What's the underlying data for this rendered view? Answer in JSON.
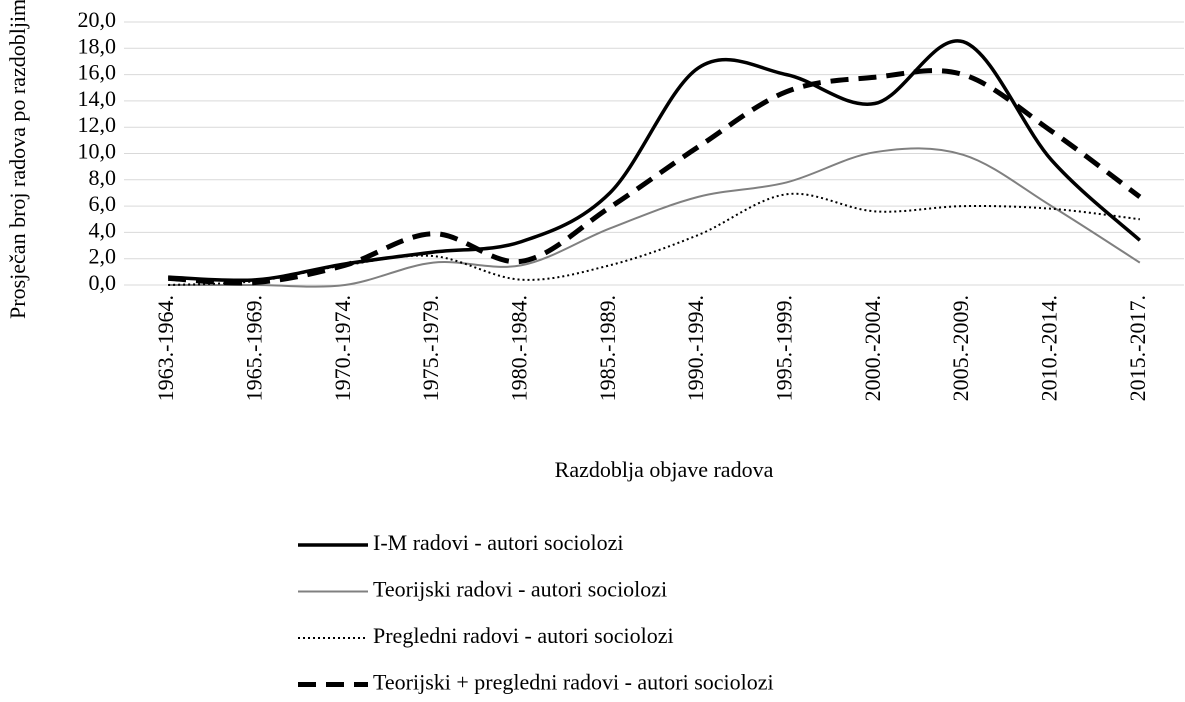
{
  "chart_data": {
    "type": "line",
    "xlabel": "Razdoblja objave radova",
    "ylabel": "Prosječan broj radova po razdobljima",
    "categories": [
      "1963.-1964.",
      "1965.-1969.",
      "1970.-1974.",
      "1975.-1979.",
      "1980.-1984.",
      "1985.-1989.",
      "1990.-1994.",
      "1995.-1999.",
      "2000.-2004.",
      "2005.-2009.",
      "2010.-2014.",
      "2015.-2017."
    ],
    "series": [
      {
        "name": "I-M radovi - autori sociolozi",
        "color": "#000000",
        "values": [
          0.6,
          0.4,
          1.6,
          2.5,
          3.3,
          7.0,
          16.5,
          16.0,
          13.8,
          18.5,
          9.5,
          3.4
        ]
      },
      {
        "name": "Teorijski radovi - autori sociolozi",
        "color": "#808080",
        "values": [
          0.0,
          0.0,
          0.0,
          1.7,
          1.5,
          4.3,
          6.7,
          7.8,
          10.1,
          9.9,
          6.0,
          1.7
        ]
      },
      {
        "name": "Pregledni radovi - autori sociolozi",
        "color": "#000000",
        "values": [
          0.0,
          0.3,
          1.5,
          2.2,
          0.4,
          1.5,
          3.8,
          6.9,
          5.6,
          6.0,
          5.8,
          5.0
        ]
      },
      {
        "name": "Teorijski + pregledni radovi - autori sociolozi",
        "color": "#000000",
        "values": [
          0.5,
          0.2,
          1.5,
          3.9,
          1.8,
          5.9,
          10.5,
          14.7,
          15.8,
          16.0,
          11.7,
          6.7
        ]
      }
    ],
    "ylim": [
      0,
      20
    ],
    "yticks": [
      {
        "value": 0,
        "label": "0,0"
      },
      {
        "value": 2,
        "label": "2,0"
      },
      {
        "value": 4,
        "label": "4,0"
      },
      {
        "value": 6,
        "label": "6,0"
      },
      {
        "value": 8,
        "label": "8,0"
      },
      {
        "value": 10,
        "label": "10,0"
      },
      {
        "value": 12,
        "label": "12,0"
      },
      {
        "value": 14,
        "label": "14,0"
      },
      {
        "value": 16,
        "label": "16,0"
      },
      {
        "value": 18,
        "label": "18,0"
      },
      {
        "value": 20,
        "label": "20,0"
      }
    ],
    "grid": true,
    "smooth": true,
    "legend": "bottom"
  }
}
